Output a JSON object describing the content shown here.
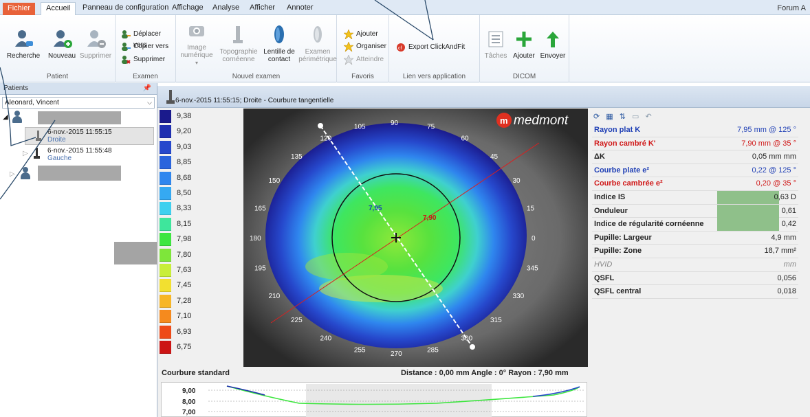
{
  "menu": {
    "tabs": [
      "Fichier",
      "Accueil",
      "Panneau de configuration",
      "Affichage",
      "Analyse",
      "Afficher",
      "Annoter"
    ],
    "right": "Forum A"
  },
  "ribbon": {
    "patient": {
      "title": "Patient",
      "recherche": "Recherche",
      "nouveau": "Nouveau",
      "supprimer": "Supprimer"
    },
    "examen": {
      "title": "Examen",
      "deplacer": "Déplacer vers",
      "copier": "Copier vers",
      "supprimer": "Supprimer"
    },
    "nouvel_examen": {
      "title": "Nouvel examen",
      "image_l1": "Image",
      "image_l2": "numérique",
      "topo_l1": "Topographie",
      "topo_l2": "cornéenne",
      "lentille_l1": "Lentille de",
      "lentille_l2": "contact",
      "examen_l1": "Examen",
      "examen_l2": "périmétrique"
    },
    "favoris": {
      "title": "Favoris",
      "ajouter": "Ajouter",
      "organiser": "Organiser",
      "atteindre": "Atteindre"
    },
    "lien": {
      "title": "Lien vers application",
      "export": "Export ClickAndFit"
    },
    "dicom": {
      "title": "DICOM",
      "taches": "Tâches",
      "ajouter": "Ajouter",
      "envoyer": "Envoyer"
    }
  },
  "patients": {
    "header": "Patients",
    "selected": "Aleonard, Vincent",
    "exams": [
      {
        "date": "6-nov.-2015  11:55:15",
        "eye": "Droite"
      },
      {
        "date": "6-nov.-2015  11:55:48",
        "eye": "Gauche"
      }
    ]
  },
  "view": {
    "title": "6-nov.-2015  11:55:15; Droite - Courbure tangentielle",
    "brand": "medmont",
    "scale": [
      "9,38",
      "9,20",
      "9,03",
      "8,85",
      "8,68",
      "8,50",
      "8,33",
      "8,15",
      "7,98",
      "7,80",
      "7,63",
      "7,45",
      "7,28",
      "7,10",
      "6,93",
      "6,75"
    ],
    "scale_colors": [
      "#1a1a8c",
      "#1f2fb0",
      "#2648cc",
      "#2a64dd",
      "#2f86ee",
      "#35a9f2",
      "#3fd0ef",
      "#3ee69c",
      "#3ee640",
      "#7ee63a",
      "#c8ee3a",
      "#f2e030",
      "#f7b626",
      "#f58a1e",
      "#ee4a18",
      "#cc1414"
    ],
    "curvature_label": "Courbure standard",
    "readout": "Distance : 0,00 mm   Angle :  0°   Rayon :  7,90 mm",
    "map_value_flat": "7,95",
    "map_value_steep": "7,90",
    "angle_labels": [
      "90",
      "75",
      "60",
      "45",
      "30",
      "15",
      "0",
      "345",
      "330",
      "315",
      "300",
      "285",
      "270",
      "255",
      "240",
      "225",
      "210",
      "195",
      "180",
      "165",
      "150",
      "135",
      "120",
      "105"
    ],
    "profile_ticks": [
      "9,00",
      "8,00",
      "7,00"
    ]
  },
  "measurements": [
    {
      "label": "Rayon plat K",
      "value": "7,95 mm @ 125 °",
      "color": "#1f3fb5",
      "hl": false
    },
    {
      "label": "Rayon cambré K'",
      "value": "7,90 mm @  35 °",
      "color": "#d01818",
      "hl": false
    },
    {
      "label": "ΔK",
      "value": "0,05 mm mm",
      "color": "#222222",
      "hl": false
    },
    {
      "label": "Courbe plate e²",
      "value": "0,22 @ 125 °",
      "color": "#1f3fb5",
      "hl": false
    },
    {
      "label": "Courbe cambrée e²",
      "value": "0,20 @  35 °",
      "color": "#d01818",
      "hl": false
    },
    {
      "label": "Indice IS",
      "value": "0,63 D",
      "color": "#222222",
      "hl": true
    },
    {
      "label": "Onduleur",
      "value": "0,61",
      "color": "#222222",
      "hl": true
    },
    {
      "label": "Indice de régularité cornéenne",
      "value": "0,42",
      "color": "#222222",
      "hl": true
    },
    {
      "label": "Pupille: Largeur",
      "value": "4,9 mm",
      "color": "#222222",
      "hl": false
    },
    {
      "label": "Pupille: Zone",
      "value": "18,7 mm²",
      "color": "#222222",
      "hl": false
    },
    {
      "label": "HVID",
      "value": "mm",
      "color": "#888888",
      "hl": false
    },
    {
      "label": "QSFL",
      "value": "0,056",
      "color": "#222222",
      "hl": false
    },
    {
      "label": "QSFL central",
      "value": "0,018",
      "color": "#222222",
      "hl": false
    }
  ]
}
